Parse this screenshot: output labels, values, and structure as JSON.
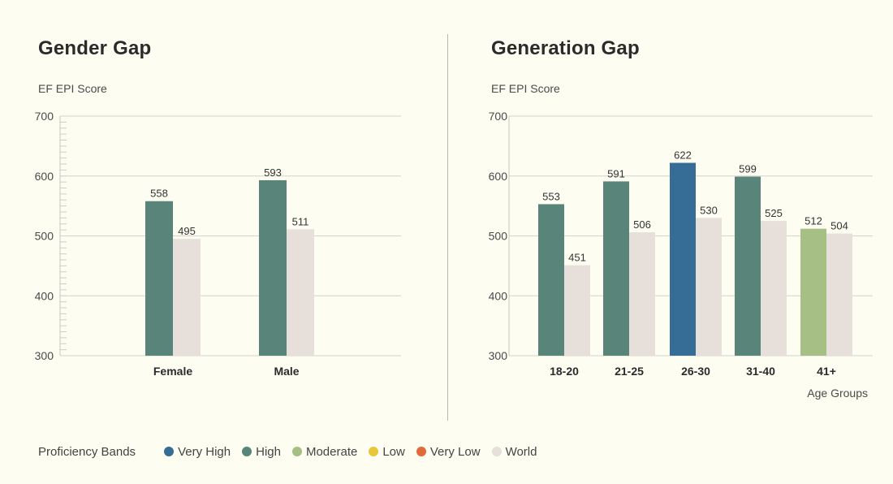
{
  "legend": {
    "title": "Proficiency Bands",
    "items": [
      {
        "label": "Very High",
        "color": "#356d97"
      },
      {
        "label": "High",
        "color": "#58847a"
      },
      {
        "label": "Moderate",
        "color": "#a6bf84"
      },
      {
        "label": "Low",
        "color": "#e8c73b"
      },
      {
        "label": "Very Low",
        "color": "#e2693a"
      },
      {
        "label": "World",
        "color": "#e7dfd9"
      }
    ]
  },
  "chart_data": [
    {
      "type": "bar",
      "title": "Gender Gap",
      "ylabel": "EF EPI Score",
      "xlabel": "",
      "ylim": [
        300,
        700
      ],
      "yticks": [
        300,
        400,
        500,
        600,
        700
      ],
      "grid": true,
      "categories": [
        "Female",
        "Male"
      ],
      "series": [
        {
          "name": "",
          "values": [
            558,
            593
          ],
          "bands": [
            "High",
            "High"
          ]
        },
        {
          "name": "World",
          "values": [
            495,
            511
          ]
        }
      ]
    },
    {
      "type": "bar",
      "title": "Generation Gap",
      "ylabel": "EF EPI Score",
      "xlabel": "Age Groups",
      "ylim": [
        300,
        700
      ],
      "yticks": [
        300,
        400,
        500,
        600,
        700
      ],
      "grid": true,
      "categories": [
        "18-20",
        "21-25",
        "26-30",
        "31-40",
        "41+"
      ],
      "series": [
        {
          "name": "",
          "values": [
            553,
            591,
            622,
            599,
            512
          ],
          "bands": [
            "High",
            "High",
            "Very High",
            "High",
            "Moderate"
          ]
        },
        {
          "name": "World",
          "values": [
            451,
            506,
            530,
            525,
            504
          ]
        }
      ]
    }
  ]
}
